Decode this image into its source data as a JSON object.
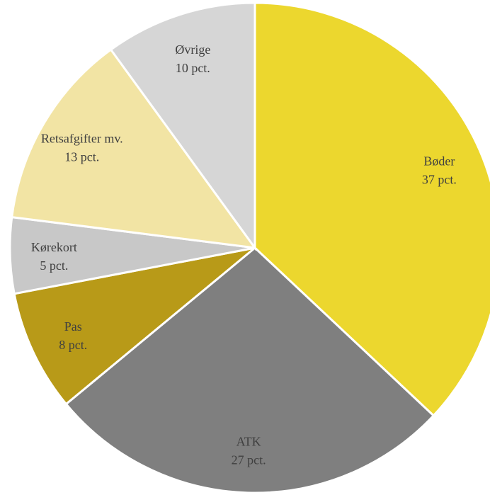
{
  "chart_data": {
    "type": "pie",
    "title": "",
    "start_angle_deg": 0,
    "direction": "clockwise",
    "slices": [
      {
        "label": "Bøder",
        "value": 37,
        "value_label": "37 pct.",
        "color": "#ECD72E"
      },
      {
        "label": "ATK",
        "value": 27,
        "value_label": "27 pct.",
        "color": "#7F7F7F"
      },
      {
        "label": "Pas",
        "value": 8,
        "value_label": "8 pct.",
        "color": "#B89A18"
      },
      {
        "label": "Kørekort",
        "value": 5,
        "value_label": "5 pct.",
        "color": "#C8C8C8"
      },
      {
        "label": "Retsafgifter mv.",
        "value": 13,
        "value_label": "13 pct.",
        "color": "#F2E4A4"
      },
      {
        "label": "Øvrige",
        "value": 10,
        "value_label": "10 pct.",
        "color": "#D6D6D6"
      }
    ]
  }
}
